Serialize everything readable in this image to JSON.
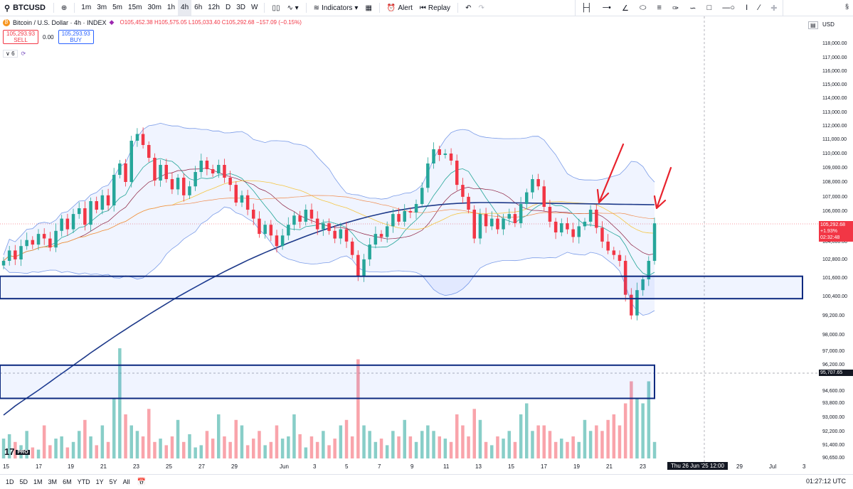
{
  "toolbar": {
    "symbol": "BTCUSD",
    "intervals": [
      "1m",
      "3m",
      "5m",
      "15m",
      "30m",
      "1h",
      "4h",
      "6h",
      "12h",
      "D",
      "3D",
      "W"
    ],
    "active_interval": "4h",
    "indicators_label": "Indicators",
    "alert_label": "Alert",
    "replay_label": "Replay"
  },
  "legend": {
    "title": "Bitcoin / U.S. Dollar · 4h · INDEX",
    "o": "O105,452.38",
    "h": "H105,575.05",
    "l": "L105,033.40",
    "c": "C105,292.68",
    "chg": "−157.09 (−0.15%)",
    "sell_price": "105,293.93",
    "sell_label": "SELL",
    "spread": "0.00",
    "buy_price": "105,293.93",
    "buy_label": "BUY",
    "indicator_count": "6"
  },
  "axis": {
    "currency": "USD",
    "ticks": [
      "118,000.00",
      "117,000.00",
      "116,000.00",
      "115,000.00",
      "114,000.00",
      "113,000.00",
      "112,000.00",
      "111,000.00",
      "110,000.00",
      "109,000.00",
      "108,000.00",
      "107,000.00",
      "106,000.00",
      "104,000.00",
      "102,800.00",
      "101,600.00",
      "100,400.00",
      "99,200.00",
      "98,000.00",
      "97,000.00",
      "96,200.00",
      "94,600.00",
      "93,800.00",
      "93,000.00",
      "92,200.00",
      "91,400.00",
      "90,650.00"
    ]
  },
  "price_tag": {
    "price": "105,292.68",
    "change": "+1.93%",
    "timer": "02:32:48"
  },
  "crosshair": {
    "price": "95,707.65",
    "date": "Thu 26 Jun '25   12:00"
  },
  "dates": [
    "15",
    "17",
    "19",
    "21",
    "23",
    "25",
    "27",
    "29",
    "Jun",
    "3",
    "5",
    "7",
    "9",
    "11",
    "13",
    "15",
    "17",
    "19",
    "21",
    "23",
    "29",
    "Jul",
    "3"
  ],
  "ranges": [
    "1D",
    "5D",
    "1M",
    "3M",
    "6M",
    "YTD",
    "1Y",
    "5Y",
    "All"
  ],
  "clock": "01:27:12 UTC",
  "watermark": "TV PRO",
  "colors": {
    "up": "#26a69a",
    "down": "#f23645",
    "band": "#2962ff",
    "zone": "#0d2a80"
  },
  "chart_data": {
    "type": "candlestick",
    "ylim": [
      90650,
      118700
    ],
    "close": [
      102800,
      103500,
      102900,
      103800,
      104200,
      103900,
      104600,
      104300,
      103700,
      104800,
      105600,
      104900,
      105900,
      106300,
      105200,
      106800,
      106200,
      107200,
      106500,
      108600,
      109400,
      108100,
      111000,
      111500,
      110700,
      109800,
      108200,
      109300,
      108300,
      107600,
      108400,
      107200,
      107800,
      108800,
      109600,
      109000,
      108700,
      109300,
      108400,
      107900,
      106700,
      107200,
      106200,
      105600,
      104600,
      105200,
      104500,
      103800,
      104500,
      105200,
      105800,
      105400,
      106200,
      105600,
      104900,
      105300,
      104800,
      104300,
      104900,
      104100,
      103200,
      101800,
      102900,
      103900,
      104600,
      104400,
      105100,
      105900,
      105400,
      106100,
      106000,
      106600,
      107700,
      109400,
      110400,
      110000,
      110100,
      109600,
      107900,
      107100,
      106200,
      104300,
      105900,
      105100,
      105600,
      104900,
      105600,
      105900,
      105300,
      106600,
      107400,
      108300,
      107800,
      106400,
      105400,
      104700,
      105300,
      104900,
      104400,
      105100,
      105400,
      106200,
      105000,
      104100,
      103500,
      103200,
      102800,
      100600,
      99300,
      100900,
      101600,
      102800,
      105292
    ],
    "volume": [
      0.18,
      0.22,
      0.15,
      0.12,
      0.25,
      0.1,
      0.08,
      0.3,
      0.12,
      0.18,
      0.2,
      0.1,
      0.15,
      0.25,
      0.35,
      0.2,
      0.12,
      0.3,
      0.15,
      0.55,
      1.0,
      0.4,
      0.3,
      0.25,
      0.2,
      0.45,
      0.15,
      0.18,
      0.12,
      0.2,
      0.35,
      0.15,
      0.22,
      0.1,
      0.12,
      0.25,
      0.18,
      0.4,
      0.2,
      0.15,
      0.35,
      0.3,
      0.12,
      0.18,
      0.25,
      0.12,
      0.15,
      0.3,
      0.18,
      0.2,
      0.4,
      0.22,
      0.1,
      0.2,
      0.15,
      0.25,
      0.12,
      0.18,
      0.3,
      0.35,
      0.2,
      0.9,
      0.3,
      0.25,
      0.15,
      0.18,
      0.12,
      0.25,
      0.2,
      0.35,
      0.2,
      0.15,
      0.25,
      0.3,
      0.25,
      0.2,
      0.18,
      0.15,
      0.4,
      0.3,
      0.2,
      0.45,
      0.35,
      0.15,
      0.12,
      0.2,
      0.18,
      0.25,
      0.15,
      0.4,
      0.5,
      0.25,
      0.3,
      0.3,
      0.25,
      0.15,
      0.18,
      0.15,
      0.2,
      0.15,
      0.35,
      0.25,
      0.3,
      0.25,
      0.35,
      0.4,
      0.3,
      0.5,
      0.7,
      0.55,
      0.5,
      0.7,
      0.15
    ],
    "zones": [
      {
        "top": 101800,
        "bottom": 100350
      },
      {
        "top": 96250,
        "bottom": 94200
      }
    ]
  }
}
